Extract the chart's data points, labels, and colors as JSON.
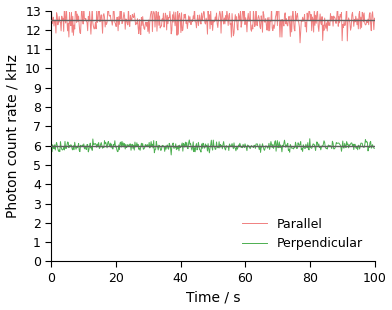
{
  "title": "",
  "xlabel": "Time / s",
  "ylabel": "Photon count rate / kHz",
  "xlim": [
    0,
    100
  ],
  "ylim": [
    0,
    13
  ],
  "xticks": [
    0,
    20,
    40,
    60,
    80,
    100
  ],
  "yticks": [
    0,
    1,
    2,
    3,
    4,
    5,
    6,
    7,
    8,
    9,
    10,
    11,
    12,
    13
  ],
  "parallel_mean": 12.5,
  "parallel_noise": 0.38,
  "perpendicular_mean": 5.97,
  "perpendicular_noise": 0.15,
  "n_points": 500,
  "parallel_color": "#f08080",
  "perpendicular_color": "#4caf50",
  "trend_color": "#606060",
  "legend_labels": [
    "Parallel",
    "Perpendicular"
  ],
  "legend_loc": "lower right",
  "figsize": [
    3.92,
    3.1
  ],
  "dpi": 100,
  "seed": 7
}
